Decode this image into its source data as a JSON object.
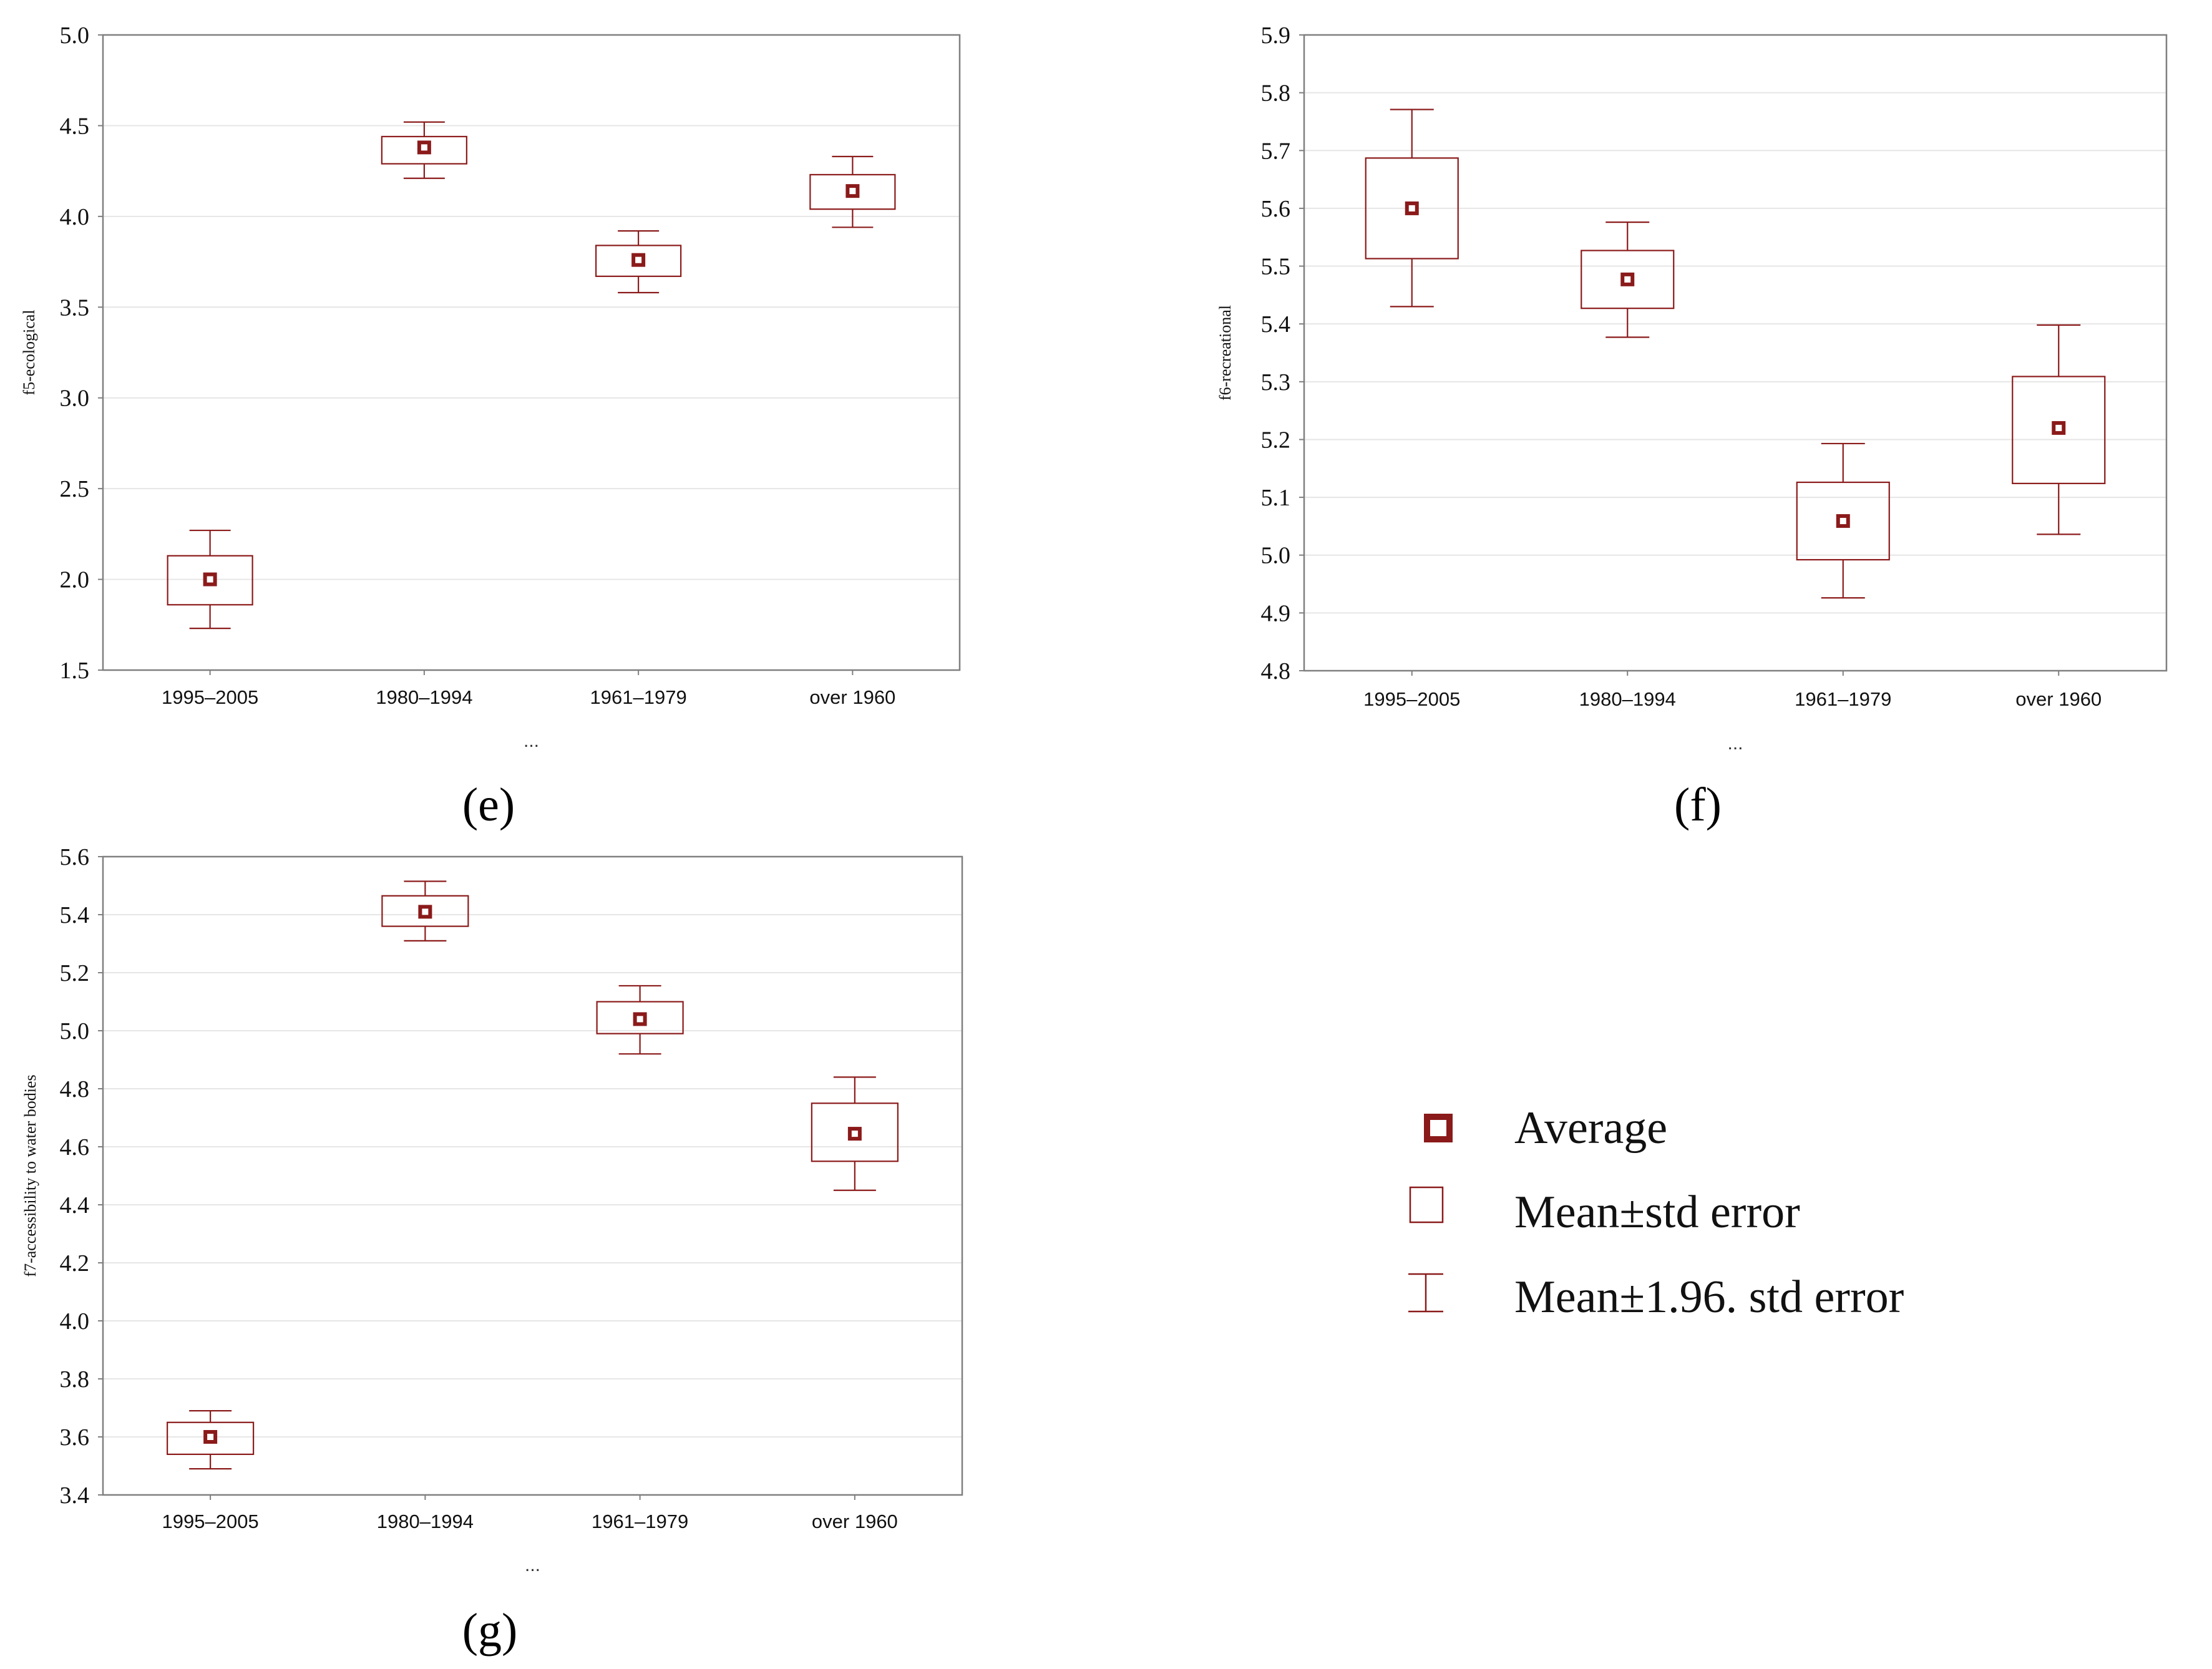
{
  "colors": {
    "accent": "#8b1a1a",
    "grid": "#e6e6e6",
    "frame": "#7f7f7f"
  },
  "panel_labels": [
    "(e)",
    "(f)",
    "(g)"
  ],
  "legend": {
    "items": [
      {
        "icon": "average-marker-icon",
        "label": "Average"
      },
      {
        "icon": "std-error-box-icon",
        "label": "Mean±std error"
      },
      {
        "icon": "whisker-icon",
        "label": "Mean±1.96. std error"
      }
    ]
  },
  "chart_data": [
    {
      "type": "box",
      "panel": "(e)",
      "title": "",
      "xlabel": "...",
      "ylabel": "f5-ecological",
      "categories": [
        "1995–2005",
        "1980–1994",
        "1961–1979",
        "over 1960"
      ],
      "ylim": [
        1.5,
        5.0
      ],
      "yticks": [
        1.5,
        2.0,
        2.5,
        3.0,
        3.5,
        4.0,
        4.5,
        5.0
      ],
      "yticklabels": [
        "1.5",
        "2.0",
        "2.5",
        "3.0",
        "3.5",
        "4.0",
        "4.5",
        "5.0"
      ],
      "mean": [
        2.0,
        4.38,
        3.76,
        4.14
      ],
      "se_low": [
        1.86,
        4.29,
        3.67,
        4.04
      ],
      "se_high": [
        2.13,
        4.44,
        3.84,
        4.23
      ],
      "ci_low": [
        1.73,
        4.21,
        3.58,
        3.94
      ],
      "ci_high": [
        2.27,
        4.52,
        3.92,
        4.33
      ]
    },
    {
      "type": "box",
      "panel": "(f)",
      "title": "",
      "xlabel": "...",
      "ylabel": "f6-recreational",
      "categories": [
        "1995–2005",
        "1980–1994",
        "1961–1979",
        "over 1960"
      ],
      "ylim": [
        4.8,
        5.9
      ],
      "yticks": [
        4.8,
        4.9,
        5.0,
        5.1,
        5.2,
        5.3,
        5.4,
        5.5,
        5.6,
        5.7,
        5.8,
        5.9
      ],
      "yticklabels": [
        "4.8",
        "4.9",
        "5.0",
        "5.1",
        "5.2",
        "5.3",
        "5.4",
        "5.5",
        "5.6",
        "5.7",
        "5.8",
        "5.9"
      ],
      "mean": [
        5.6,
        5.477,
        5.059,
        5.22
      ],
      "se_low": [
        5.513,
        5.427,
        4.992,
        5.124
      ],
      "se_high": [
        5.687,
        5.527,
        5.126,
        5.309
      ],
      "ci_low": [
        5.43,
        5.377,
        4.926,
        5.036
      ],
      "ci_high": [
        5.771,
        5.576,
        5.193,
        5.398
      ]
    },
    {
      "type": "box",
      "panel": "(g)",
      "title": "",
      "xlabel": "...",
      "ylabel": "f7-accessibility to water bodies",
      "categories": [
        "1995–2005",
        "1980–1994",
        "1961–1979",
        "over 1960"
      ],
      "ylim": [
        3.4,
        5.6
      ],
      "yticks": [
        3.4,
        3.6,
        3.8,
        4.0,
        4.2,
        4.4,
        4.6,
        4.8,
        5.0,
        5.2,
        5.4,
        5.6
      ],
      "yticklabels": [
        "3.4",
        "3.6",
        "3.8",
        "4.0",
        "4.2",
        "4.4",
        "4.6",
        "4.8",
        "5.0",
        "5.2",
        "5.4",
        "5.6"
      ],
      "mean": [
        3.6,
        5.41,
        5.04,
        4.645
      ],
      "se_low": [
        3.54,
        5.36,
        4.99,
        4.55
      ],
      "se_high": [
        3.65,
        5.465,
        5.1,
        4.75
      ],
      "ci_low": [
        3.49,
        5.31,
        4.92,
        4.45
      ],
      "ci_high": [
        3.69,
        5.515,
        5.155,
        4.84
      ]
    }
  ]
}
